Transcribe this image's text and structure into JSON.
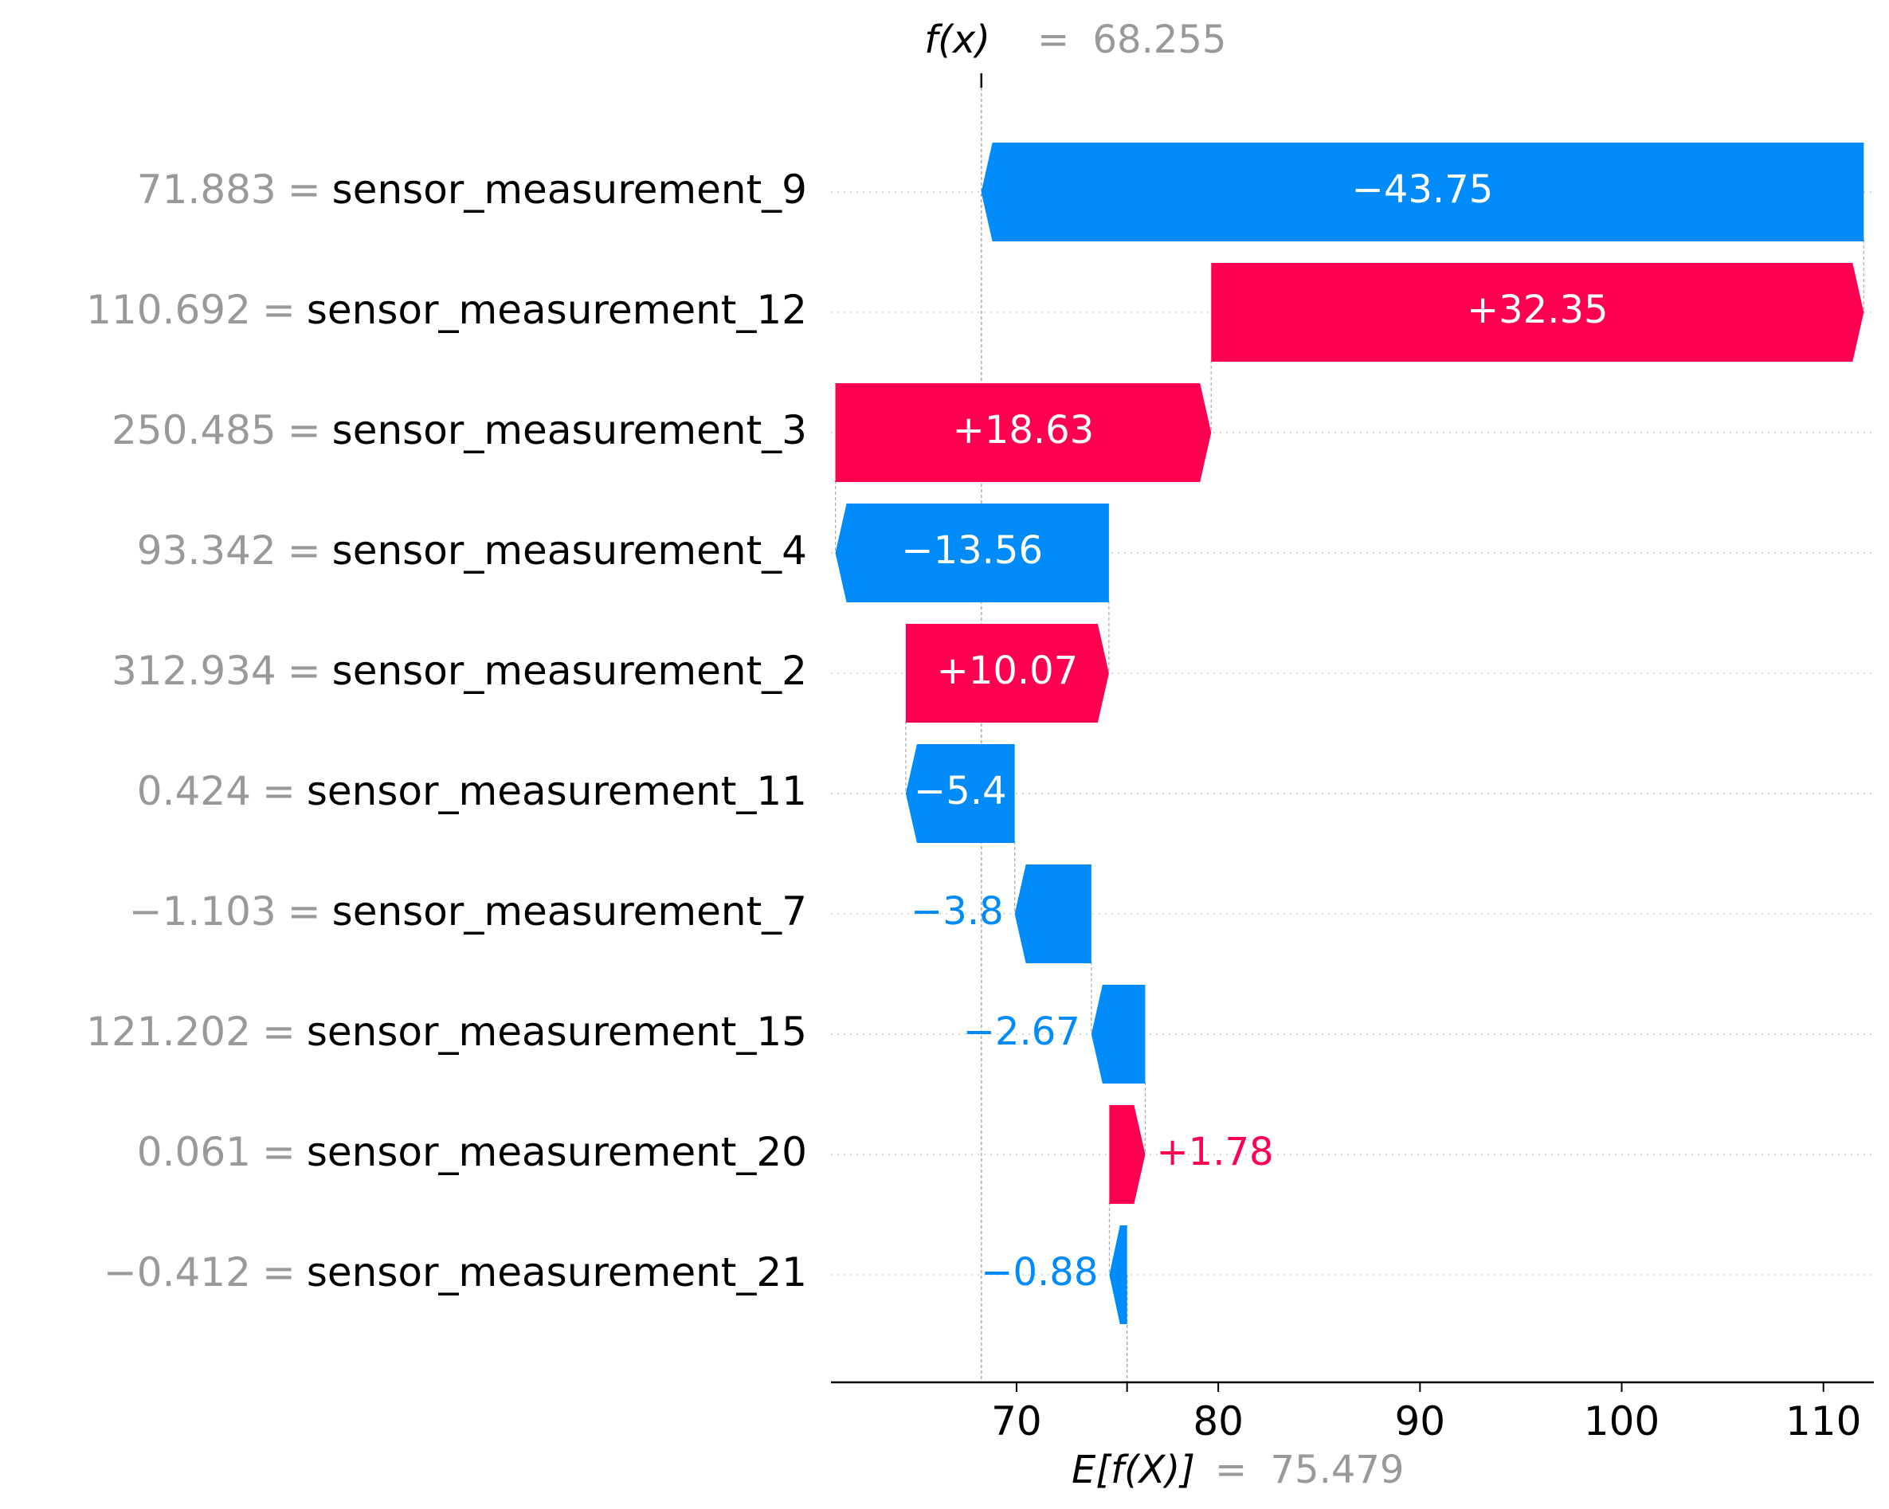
{
  "chart_data": {
    "type": "waterfall",
    "fx": {
      "symbol": "f(x)",
      "sep": "=",
      "value": "68.255"
    },
    "efx": {
      "symbol": "E[f(X)]",
      "sep": "=",
      "value": "75.479"
    },
    "base_value": 75.479,
    "output_value": 68.255,
    "xlim": [
      60.8,
      112.5
    ],
    "xticks": [
      70,
      80,
      90,
      100,
      110
    ],
    "features": [
      {
        "feature_value": "71.883",
        "sep": "=",
        "name": "sensor_measurement_9",
        "shap": -43.75,
        "label": "−43.75"
      },
      {
        "feature_value": "110.692",
        "sep": "=",
        "name": "sensor_measurement_12",
        "shap": 32.35,
        "label": "+32.35"
      },
      {
        "feature_value": "250.485",
        "sep": "=",
        "name": "sensor_measurement_3",
        "shap": 18.63,
        "label": "+18.63"
      },
      {
        "feature_value": "93.342",
        "sep": "=",
        "name": "sensor_measurement_4",
        "shap": -13.56,
        "label": "−13.56"
      },
      {
        "feature_value": "312.934",
        "sep": "=",
        "name": "sensor_measurement_2",
        "shap": 10.07,
        "label": "+10.07"
      },
      {
        "feature_value": "0.424",
        "sep": "=",
        "name": "sensor_measurement_11",
        "shap": -5.4,
        "label": "−5.4"
      },
      {
        "feature_value": "−1.103",
        "sep": "=",
        "name": "sensor_measurement_7",
        "shap": -3.8,
        "label": "−3.8"
      },
      {
        "feature_value": "121.202",
        "sep": "=",
        "name": "sensor_measurement_15",
        "shap": -2.67,
        "label": "−2.67"
      },
      {
        "feature_value": "0.061",
        "sep": "=",
        "name": "sensor_measurement_20",
        "shap": 1.78,
        "label": "+1.78"
      },
      {
        "feature_value": "−0.412",
        "sep": "=",
        "name": "sensor_measurement_21",
        "shap": -0.88,
        "label": "−0.88"
      }
    ],
    "colors": {
      "positive": "#ff0051",
      "negative": "#008bfb",
      "muted_text": "#999999",
      "text": "#000000",
      "gridline": "#cccccc"
    }
  }
}
